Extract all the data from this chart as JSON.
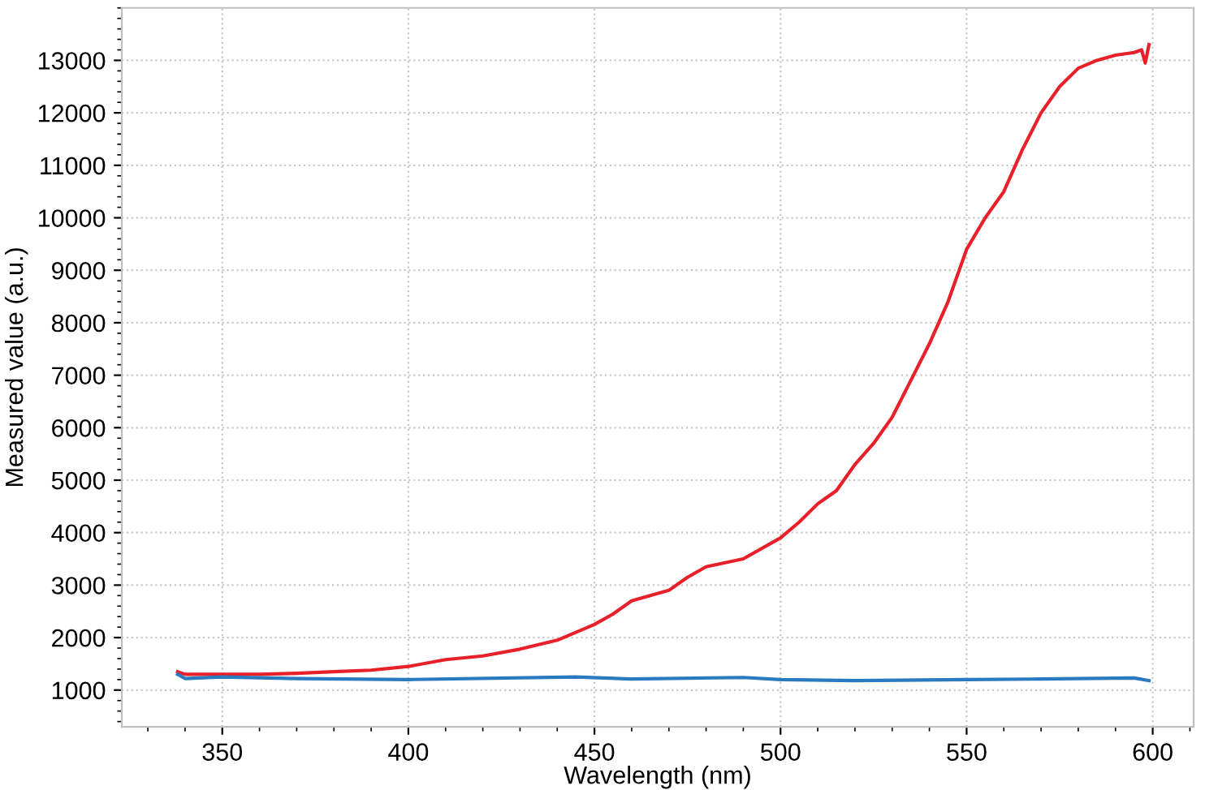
{
  "chart_data": {
    "type": "line",
    "xlabel": "Wavelength (nm)",
    "ylabel": "Measured value (a.u.)",
    "xlim": [
      323,
      611
    ],
    "ylim": [
      300,
      14000
    ],
    "xticks": [
      350,
      400,
      450,
      500,
      550,
      600
    ],
    "yticks": [
      1000,
      2000,
      3000,
      4000,
      5000,
      6000,
      7000,
      8000,
      9000,
      10000,
      11000,
      12000,
      13000
    ],
    "grid": true,
    "legend": false,
    "marker": "none",
    "line_style": "solid",
    "series": [
      {
        "color": "#e8202a",
        "x": [
          338,
          340,
          345,
          360,
          370,
          380,
          390,
          400,
          410,
          420,
          430,
          440,
          450,
          455,
          460,
          470,
          475,
          480,
          490,
          500,
          505,
          510,
          515,
          520,
          525,
          530,
          535,
          540,
          545,
          550,
          555,
          560,
          565,
          570,
          575,
          580,
          585,
          590,
          595,
          597,
          598,
          599
        ],
        "values": [
          1350,
          1300,
          1300,
          1300,
          1320,
          1350,
          1380,
          1450,
          1580,
          1650,
          1780,
          1950,
          2250,
          2450,
          2700,
          2900,
          3150,
          3350,
          3500,
          3900,
          4200,
          4550,
          4800,
          5300,
          5700,
          6200,
          6900,
          7600,
          8400,
          9400,
          10000,
          10500,
          11300,
          12000,
          12500,
          12850,
          13000,
          13100,
          13150,
          13200,
          12950,
          13300
        ]
      },
      {
        "color": "#2a7ac0",
        "x": [
          338,
          340,
          350,
          370,
          400,
          445,
          460,
          490,
          500,
          520,
          550,
          570,
          595,
          599
        ],
        "values": [
          1300,
          1220,
          1250,
          1220,
          1200,
          1250,
          1210,
          1240,
          1200,
          1180,
          1200,
          1210,
          1230,
          1180
        ]
      }
    ]
  }
}
